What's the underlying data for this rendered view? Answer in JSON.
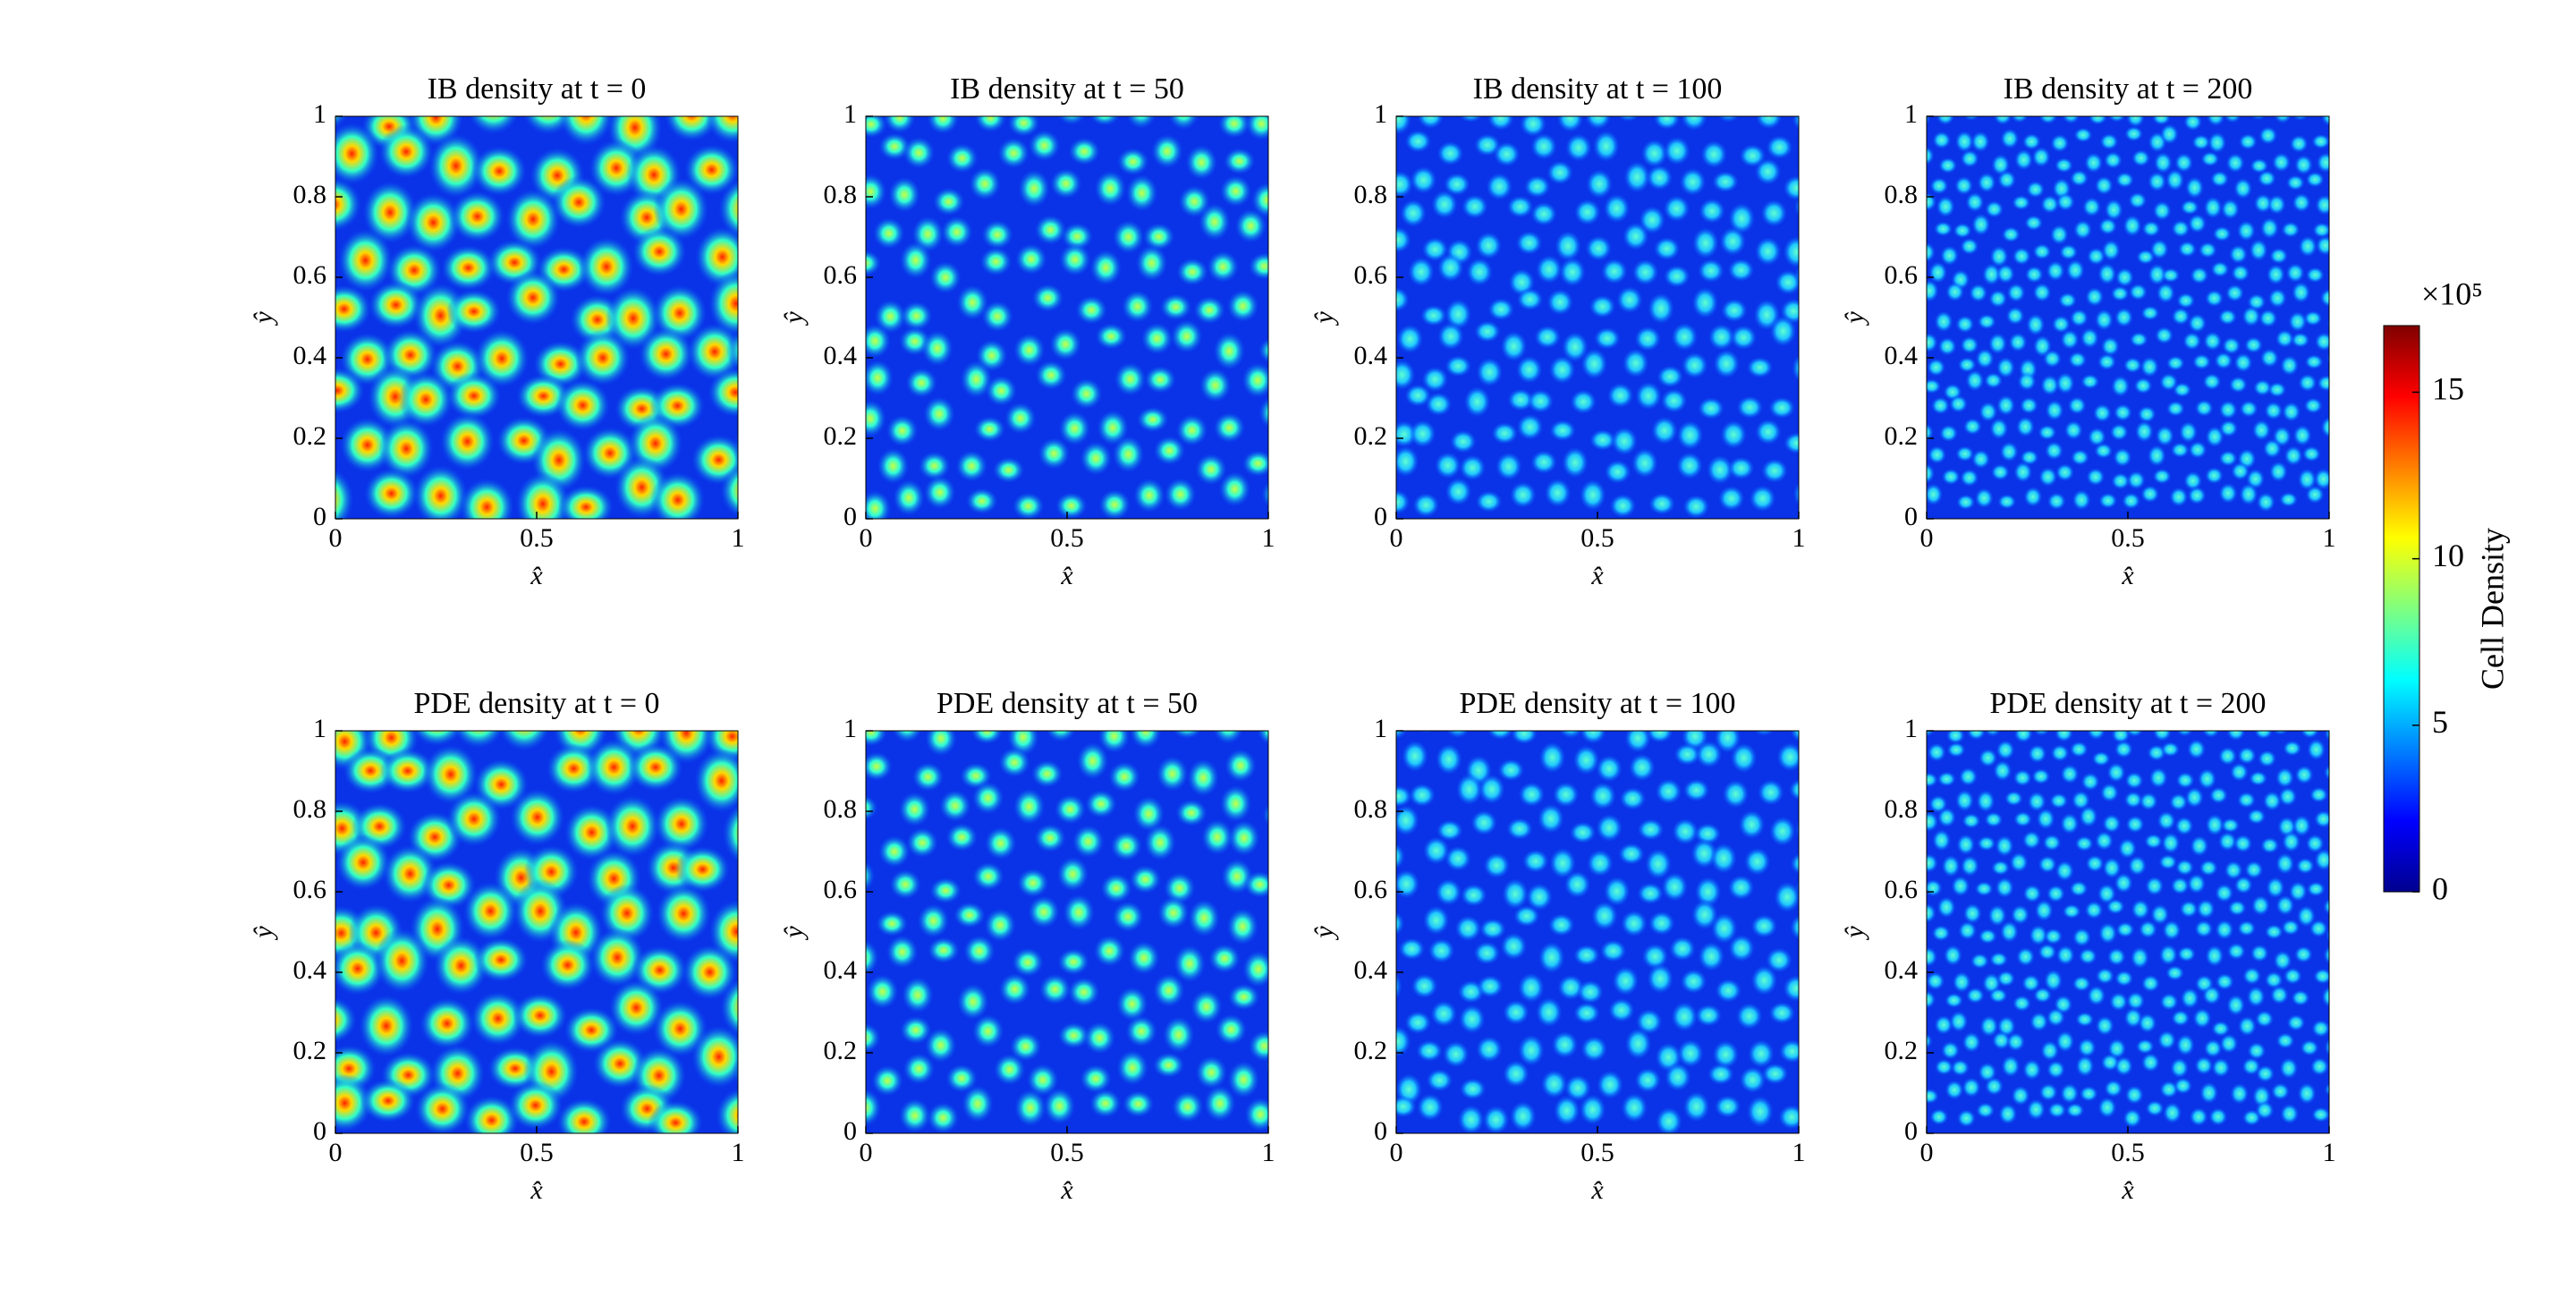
{
  "chart_data": [
    {
      "type": "heatmap",
      "title": "IB density at t = 0",
      "xlabel": "x̂",
      "ylabel": "ŷ",
      "xlim": [
        0,
        1
      ],
      "ylim": [
        0,
        1
      ],
      "xticks": [
        0,
        0.5,
        1
      ],
      "yticks": [
        0,
        0.2,
        0.4,
        0.6,
        0.8,
        1
      ]
    },
    {
      "type": "heatmap",
      "title": "IB density at t = 50",
      "xlabel": "x̂",
      "ylabel": "ŷ",
      "xlim": [
        0,
        1
      ],
      "ylim": [
        0,
        1
      ],
      "xticks": [
        0,
        0.5,
        1
      ],
      "yticks": [
        0,
        0.2,
        0.4,
        0.6,
        0.8,
        1
      ]
    },
    {
      "type": "heatmap",
      "title": "IB density at t = 100",
      "xlabel": "x̂",
      "ylabel": "ŷ",
      "xlim": [
        0,
        1
      ],
      "ylim": [
        0,
        1
      ],
      "xticks": [
        0,
        0.5,
        1
      ],
      "yticks": [
        0,
        0.2,
        0.4,
        0.6,
        0.8,
        1
      ]
    },
    {
      "type": "heatmap",
      "title": "IB density at t = 200",
      "xlabel": "x̂",
      "ylabel": "ŷ",
      "xlim": [
        0,
        1
      ],
      "ylim": [
        0,
        1
      ],
      "xticks": [
        0,
        0.5,
        1
      ],
      "yticks": [
        0,
        0.2,
        0.4,
        0.6,
        0.8,
        1
      ]
    },
    {
      "type": "heatmap",
      "title": "PDE density at t = 0",
      "xlabel": "x̂",
      "ylabel": "ŷ",
      "xlim": [
        0,
        1
      ],
      "ylim": [
        0,
        1
      ],
      "xticks": [
        0,
        0.5,
        1
      ],
      "yticks": [
        0,
        0.2,
        0.4,
        0.6,
        0.8,
        1
      ]
    },
    {
      "type": "heatmap",
      "title": "PDE density at t = 50",
      "xlabel": "x̂",
      "ylabel": "ŷ",
      "xlim": [
        0,
        1
      ],
      "ylim": [
        0,
        1
      ],
      "xticks": [
        0,
        0.5,
        1
      ],
      "yticks": [
        0,
        0.2,
        0.4,
        0.6,
        0.8,
        1
      ]
    },
    {
      "type": "heatmap",
      "title": "PDE density at t = 100",
      "xlabel": "x̂",
      "ylabel": "ŷ",
      "xlim": [
        0,
        1
      ],
      "ylim": [
        0,
        1
      ],
      "xticks": [
        0,
        0.5,
        1
      ],
      "yticks": [
        0,
        0.2,
        0.4,
        0.6,
        0.8,
        1
      ]
    },
    {
      "type": "heatmap",
      "title": "PDE density at t = 200",
      "xlabel": "x̂",
      "ylabel": "ŷ",
      "xlim": [
        0,
        1
      ],
      "ylim": [
        0,
        1
      ],
      "xticks": [
        0,
        0.5,
        1
      ],
      "yticks": [
        0,
        0.2,
        0.4,
        0.6,
        0.8,
        1
      ]
    }
  ],
  "colorbar": {
    "label": "Cell Density",
    "multiplier": "×10⁵",
    "lim": [
      0,
      17
    ],
    "ticks": [
      0,
      5,
      10,
      15
    ]
  }
}
